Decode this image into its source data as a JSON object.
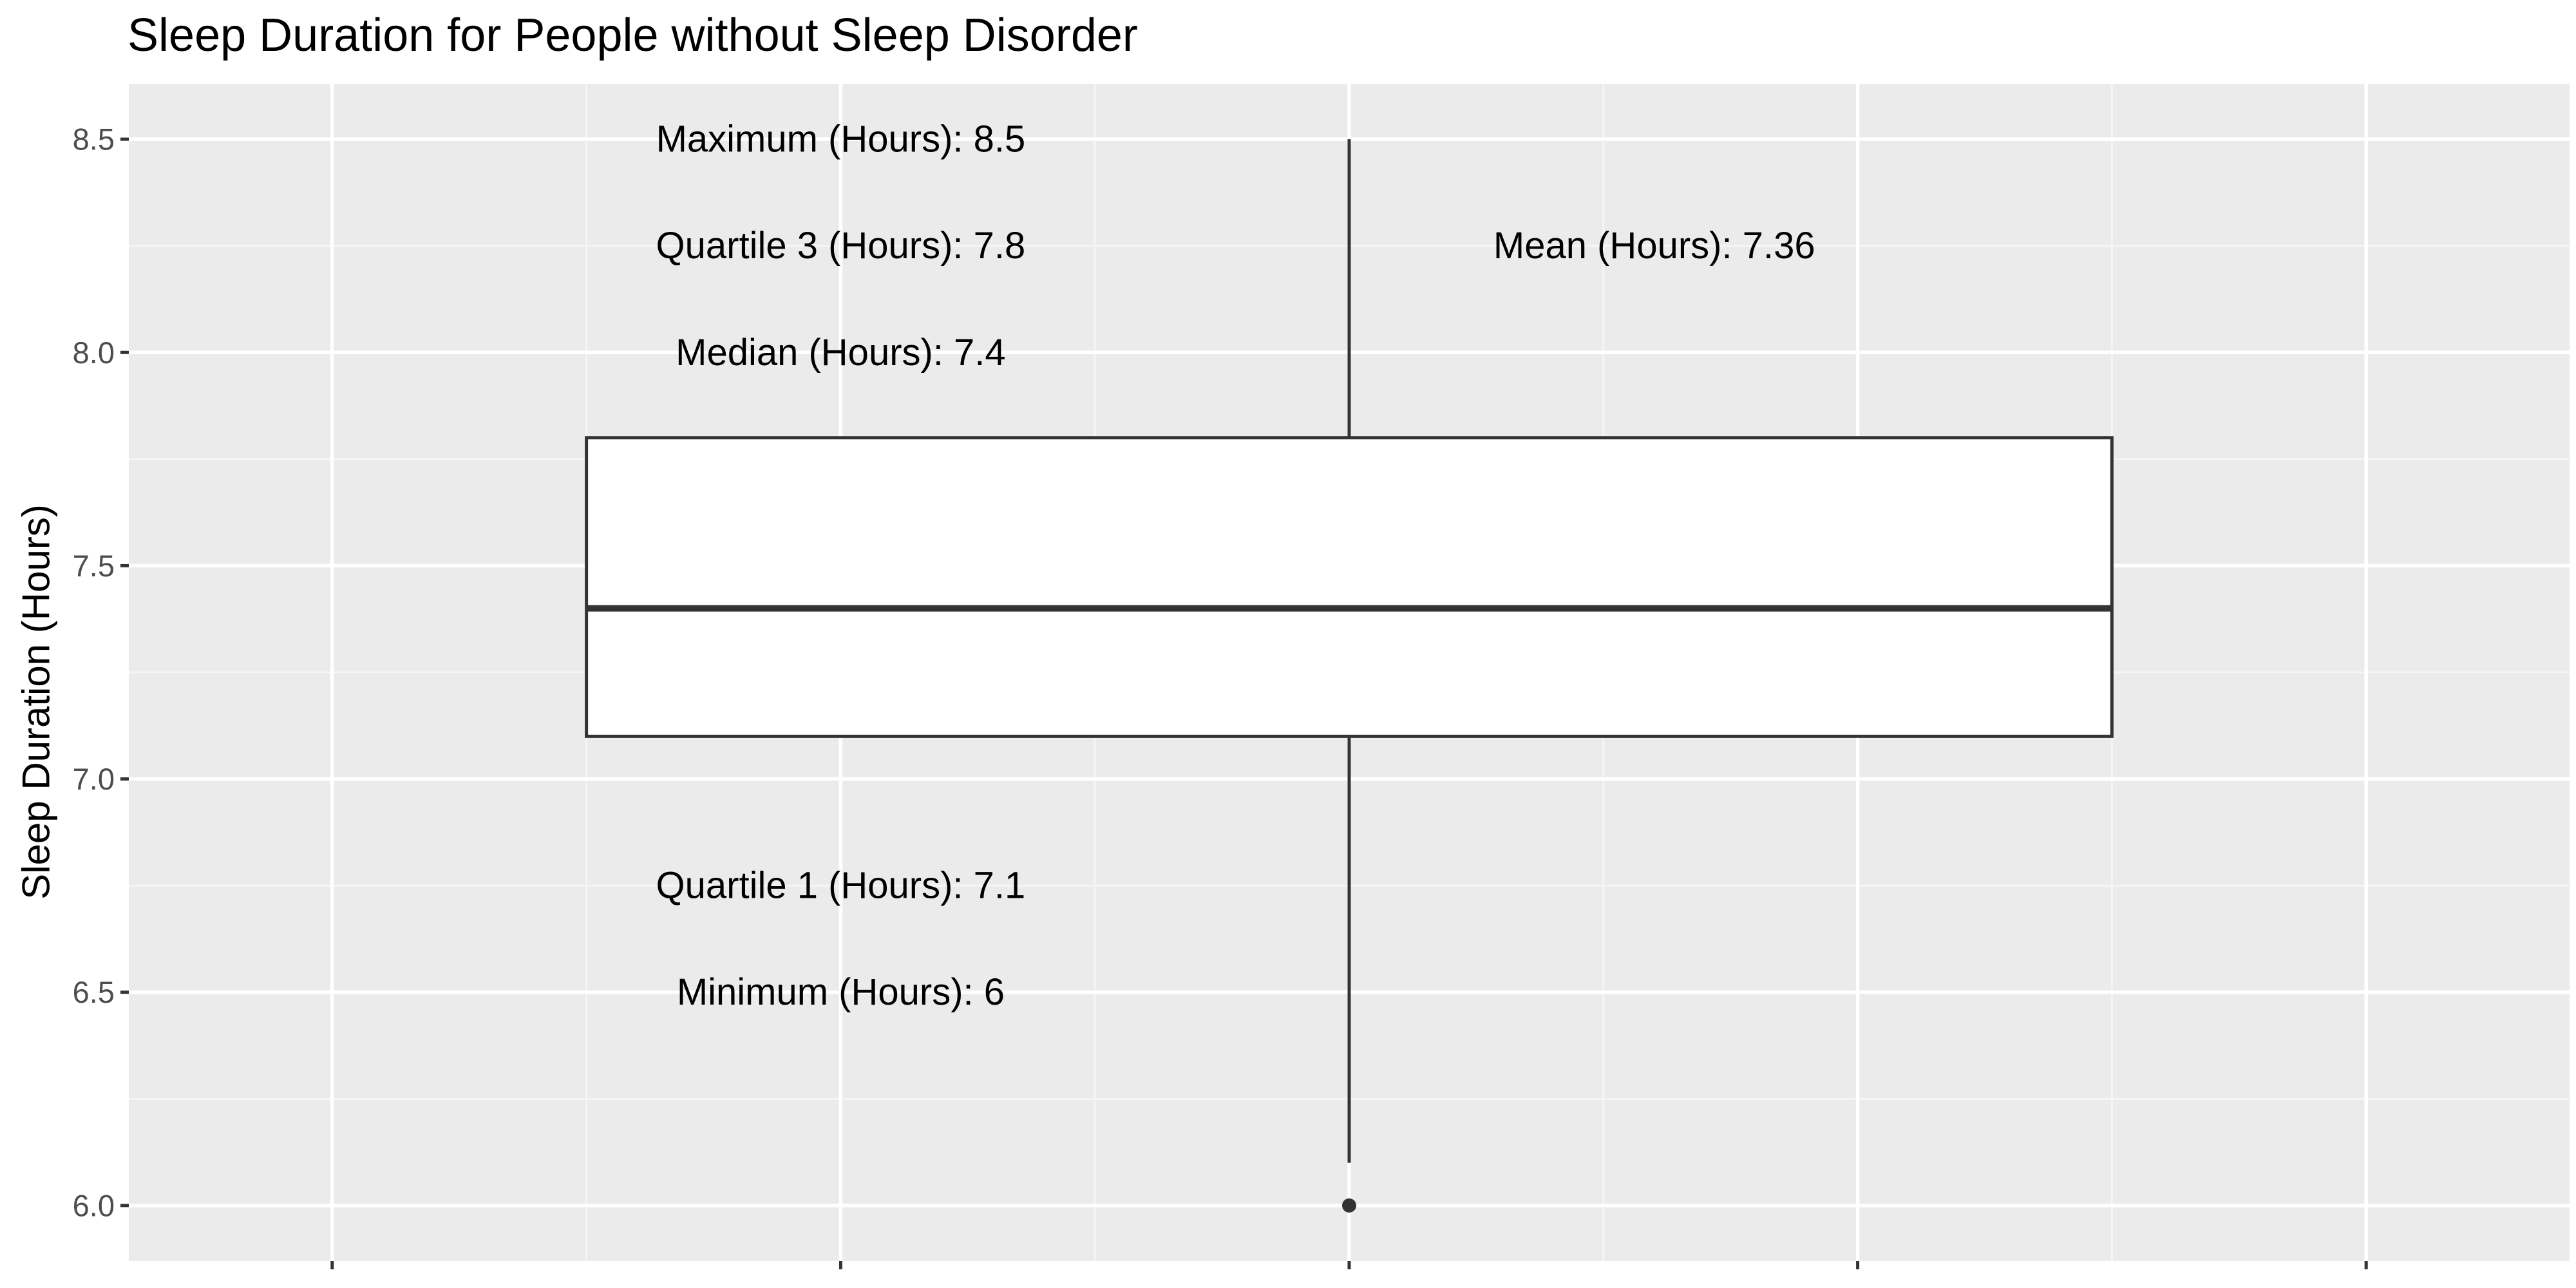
{
  "chart_data": {
    "type": "boxplot",
    "title": "Sleep Duration for People without Sleep Disorder",
    "xlabel": "",
    "ylabel": "Sleep Duration (Hours)",
    "ylim": [
      5.87,
      8.63
    ],
    "yticks": [
      6.0,
      6.5,
      7.0,
      7.5,
      8.0,
      8.5
    ],
    "ytick_labels": [
      "6.0",
      "6.5",
      "7.0",
      "7.5",
      "8.0",
      "8.5"
    ],
    "grid": true,
    "box": {
      "q1": 7.1,
      "median": 7.4,
      "q3": 7.8,
      "whisker_low": 6.1,
      "whisker_high": 8.5,
      "outliers": [
        6.0
      ]
    },
    "annotations": [
      {
        "text": "Maximum (Hours): 8.5",
        "x": -0.25,
        "y": 8.5
      },
      {
        "text": "Quartile 3 (Hours): 7.8",
        "x": -0.25,
        "y": 8.25
      },
      {
        "text": "Median (Hours): 7.4",
        "x": -0.25,
        "y": 8.0
      },
      {
        "text": "Quartile 1 (Hours): 7.1",
        "x": -0.25,
        "y": 6.75
      },
      {
        "text": "Minimum (Hours): 6",
        "x": -0.25,
        "y": 6.5
      },
      {
        "text": "Mean (Hours): 7.36",
        "x": 0.15,
        "y": 8.25
      }
    ],
    "colors": {
      "panel": "#EBEBEB",
      "grid_major": "#FFFFFF",
      "grid_minor": "#F5F5F5",
      "box_fill": "#FFFFFF",
      "box_line": "#333333",
      "axis_text": "#4D4D4D",
      "tick": "#333333",
      "annotation_text": "#000000"
    }
  }
}
